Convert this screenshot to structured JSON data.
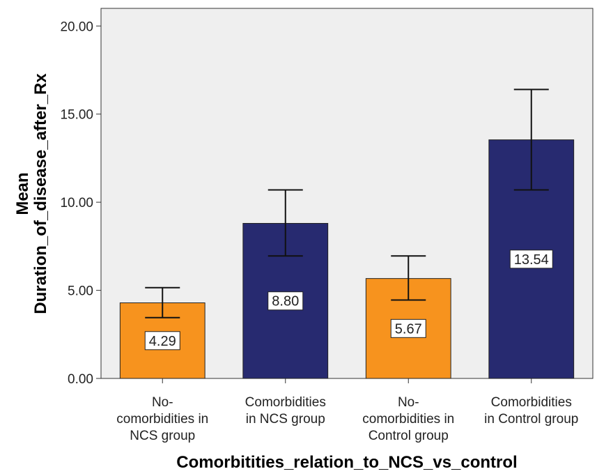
{
  "chart_data": {
    "type": "bar",
    "categories": [
      [
        "No-",
        "comorbidities in",
        "NCS group"
      ],
      [
        "Comorbidities",
        "in NCS group"
      ],
      [
        "No-",
        "comorbidities in",
        "Control group"
      ],
      [
        "Comorbidities",
        "in Control group"
      ]
    ],
    "values": [
      4.29,
      8.8,
      5.67,
      13.54
    ],
    "value_labels": [
      "4.29",
      "8.80",
      "5.67",
      "13.54"
    ],
    "error_bars": [
      {
        "low": 3.45,
        "high": 5.15
      },
      {
        "low": 6.95,
        "high": 10.7
      },
      {
        "low": 4.45,
        "high": 6.95
      },
      {
        "low": 10.7,
        "high": 16.4
      }
    ],
    "bar_colors": [
      "#F7931E",
      "#272A70",
      "#F7931E",
      "#272A70"
    ],
    "ylabel": [
      "Mean",
      "Duration_of_disease_after_Rx"
    ],
    "xlabel": "Comorbitities_relation_to_NCS_vs_control",
    "ylim": [
      0,
      21
    ],
    "yticks": [
      0,
      5,
      10,
      15,
      20
    ],
    "ytick_labels": [
      "0.00",
      "5.00",
      "10.00",
      "15.00",
      "20.00"
    ],
    "plot_background": "#EFEFEF",
    "grid": false
  }
}
